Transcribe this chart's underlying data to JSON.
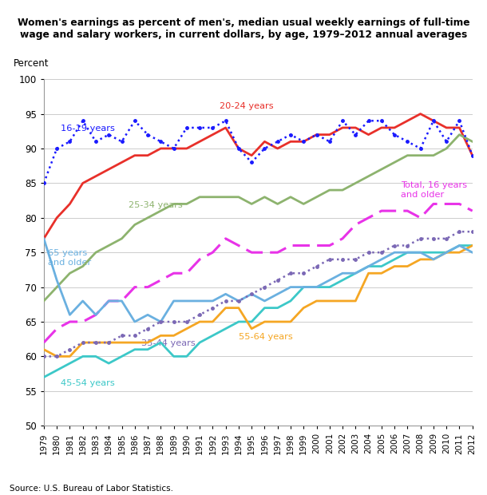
{
  "years": [
    1979,
    1980,
    1981,
    1982,
    1983,
    1984,
    1985,
    1986,
    1987,
    1988,
    1989,
    1990,
    1991,
    1992,
    1993,
    1994,
    1995,
    1996,
    1997,
    1998,
    1999,
    2000,
    2001,
    2002,
    2003,
    2004,
    2005,
    2006,
    2007,
    2008,
    2009,
    2010,
    2011,
    2012
  ],
  "age_16_19": [
    85,
    90,
    91,
    94,
    91,
    92,
    91,
    94,
    92,
    91,
    90,
    93,
    93,
    93,
    94,
    90,
    88,
    90,
    91,
    92,
    91,
    92,
    91,
    94,
    92,
    94,
    94,
    92,
    91,
    90,
    94,
    91,
    94,
    89
  ],
  "age_20_24": [
    77,
    80,
    82,
    85,
    86,
    87,
    88,
    89,
    89,
    90,
    90,
    90,
    91,
    92,
    93,
    90,
    89,
    91,
    90,
    91,
    91,
    92,
    92,
    93,
    93,
    92,
    93,
    93,
    94,
    95,
    94,
    93,
    93,
    89
  ],
  "age_25_34": [
    68,
    70,
    72,
    73,
    75,
    76,
    77,
    79,
    80,
    81,
    82,
    82,
    83,
    83,
    83,
    83,
    82,
    83,
    82,
    83,
    82,
    83,
    84,
    84,
    85,
    86,
    87,
    88,
    89,
    89,
    89,
    90,
    92,
    91
  ],
  "age_35_44": [
    60,
    60,
    61,
    62,
    62,
    62,
    63,
    63,
    64,
    65,
    65,
    65,
    66,
    67,
    68,
    68,
    69,
    70,
    71,
    72,
    72,
    73,
    74,
    74,
    74,
    75,
    75,
    76,
    76,
    77,
    77,
    77,
    78,
    78
  ],
  "age_45_54": [
    57,
    58,
    59,
    60,
    60,
    59,
    60,
    61,
    61,
    62,
    60,
    60,
    62,
    63,
    64,
    65,
    65,
    67,
    67,
    68,
    70,
    70,
    70,
    71,
    72,
    73,
    73,
    74,
    75,
    75,
    75,
    75,
    76,
    76
  ],
  "age_55_64": [
    61,
    60,
    60,
    62,
    62,
    62,
    62,
    62,
    62,
    63,
    63,
    64,
    65,
    65,
    67,
    67,
    64,
    65,
    65,
    65,
    67,
    68,
    68,
    68,
    68,
    72,
    72,
    73,
    73,
    74,
    74,
    75,
    75,
    76
  ],
  "age_65_plus": [
    77,
    71,
    66,
    68,
    66,
    68,
    68,
    65,
    66,
    65,
    68,
    68,
    68,
    68,
    69,
    68,
    69,
    68,
    69,
    70,
    70,
    70,
    71,
    72,
    72,
    73,
    74,
    75,
    75,
    75,
    74,
    75,
    76,
    75
  ],
  "total_16_plus": [
    62,
    64,
    65,
    65,
    66,
    68,
    68,
    70,
    70,
    71,
    72,
    72,
    74,
    75,
    77,
    76,
    75,
    75,
    75,
    76,
    76,
    76,
    76,
    77,
    79,
    80,
    81,
    81,
    81,
    80,
    82,
    82,
    82,
    81
  ],
  "title_line1": "Women's earnings as percent of men's, median usual weekly earnings of full-time",
  "title_line2": "wage and salary workers, in current dollars, by age, 1979–2012 annual averages",
  "ylabel": "Percent",
  "ylim": [
    50,
    100
  ],
  "yticks": [
    50,
    55,
    60,
    65,
    70,
    75,
    80,
    85,
    90,
    95,
    100
  ],
  "source": "Source: U.S. Bureau of Labor Statistics.",
  "color_16_19": "#1a1aff",
  "color_20_24": "#e8302a",
  "color_25_34": "#8db36e",
  "color_35_44": "#7b68b5",
  "color_45_54": "#3cc8c8",
  "color_55_64": "#f5a623",
  "color_65_plus": "#6ab0e0",
  "color_total": "#e833e8",
  "label_16_19": "16-19 years",
  "label_20_24": "20-24 years",
  "label_25_34": "25-34 years",
  "label_35_44": "35-44 years",
  "label_45_54": "45-54 years",
  "label_55_64": "55-64 years",
  "label_65_plus": "65 years\nand older",
  "label_total": "Total, 16 years\nand older"
}
